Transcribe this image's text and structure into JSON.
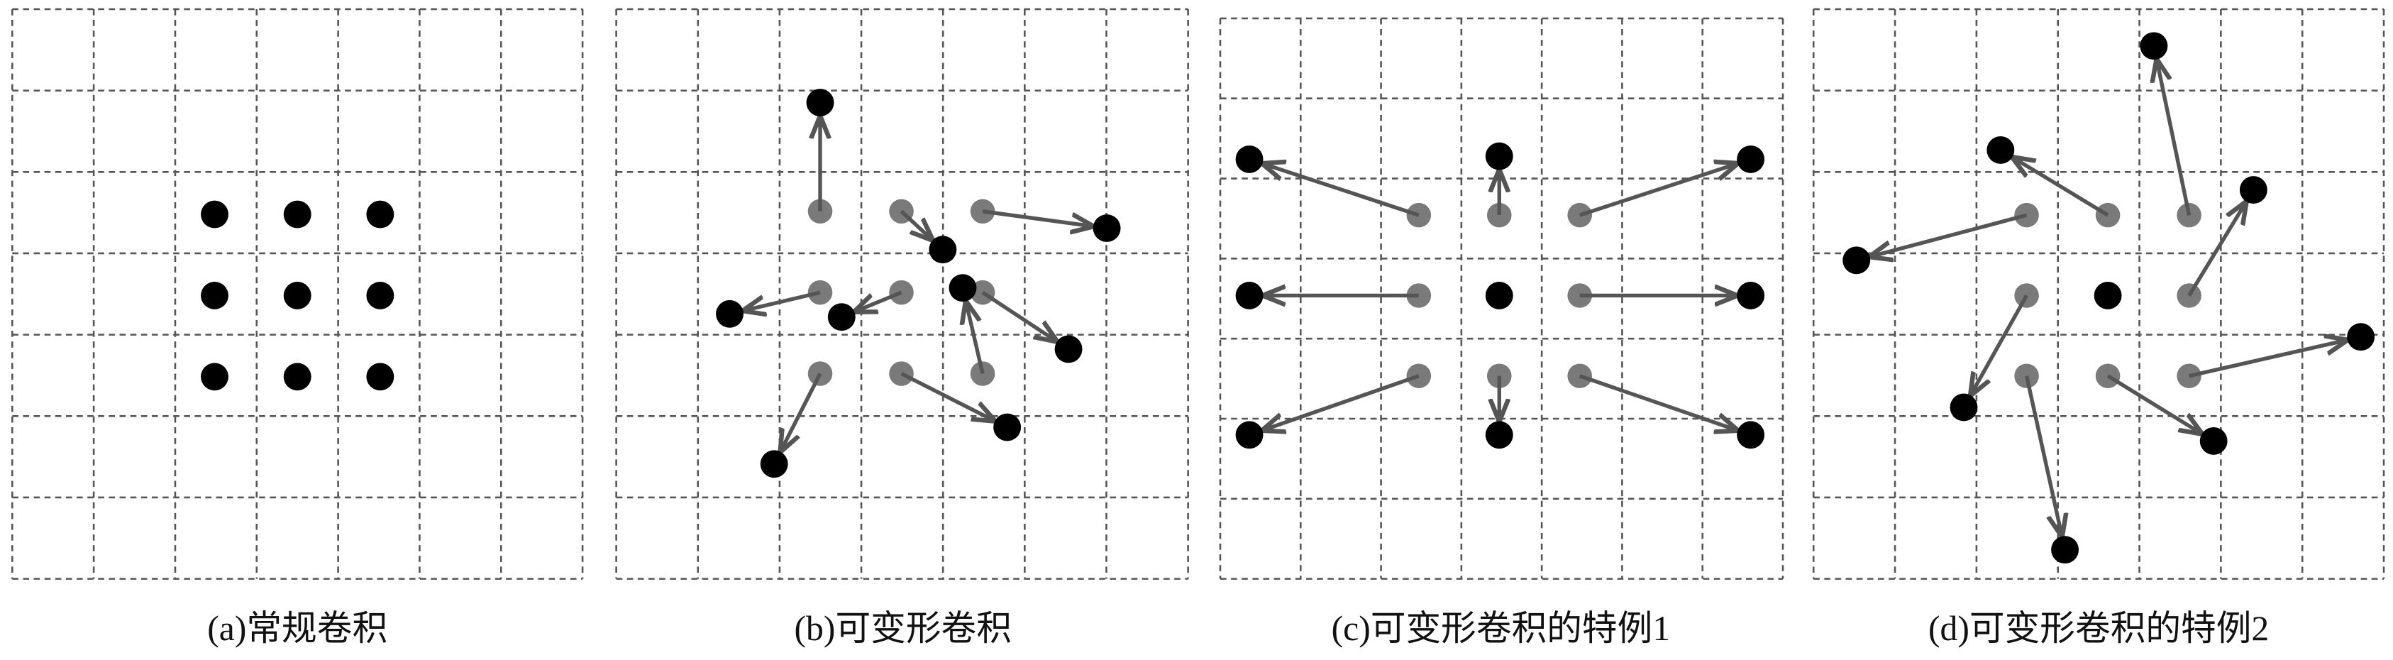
{
  "panels": [
    {
      "caption": "(a)常规卷积"
    },
    {
      "caption": "(b)可变形卷积"
    },
    {
      "caption": "(c)可变形卷积的特例1"
    },
    {
      "caption": "(d)可变形卷积的特例2"
    }
  ]
}
